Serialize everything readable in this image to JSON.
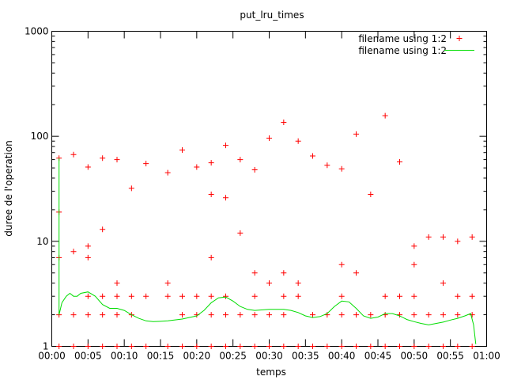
{
  "chart_data": {
    "type": "scatter",
    "title": "put_lru_times",
    "xlabel": "temps",
    "ylabel": "duree de l'operation",
    "yscale": "log",
    "ylim": [
      1,
      1000
    ],
    "y_ticks": [
      1,
      10,
      100,
      1000
    ],
    "y_tick_labels": [
      "1",
      "10",
      "100",
      "1000"
    ],
    "xlim": [
      "00:00",
      "01:00"
    ],
    "x_tick_labels": [
      "00:00",
      "00:05",
      "00:10",
      "00:15",
      "00:20",
      "00:25",
      "00:30",
      "00:35",
      "00:40",
      "00:45",
      "00:50",
      "00:55",
      "01:00"
    ],
    "legend_position": "top-right",
    "colors": {
      "points": "#ff0000",
      "line": "#00dd00"
    },
    "series": [
      {
        "name": "filename using 1:2",
        "style": "points",
        "points": [
          [
            "00:01",
            62
          ],
          [
            "00:01",
            19
          ],
          [
            "00:01",
            7
          ],
          [
            "00:01",
            2
          ],
          [
            "00:01",
            1
          ],
          [
            "00:03",
            67
          ],
          [
            "00:03",
            8
          ],
          [
            "00:03",
            2
          ],
          [
            "00:03",
            1
          ],
          [
            "00:05",
            51
          ],
          [
            "00:05",
            9
          ],
          [
            "00:05",
            7
          ],
          [
            "00:05",
            3
          ],
          [
            "00:05",
            2
          ],
          [
            "00:05",
            1
          ],
          [
            "00:07",
            62
          ],
          [
            "00:07",
            13
          ],
          [
            "00:07",
            3
          ],
          [
            "00:07",
            2
          ],
          [
            "00:07",
            1
          ],
          [
            "00:09",
            60
          ],
          [
            "00:09",
            4
          ],
          [
            "00:09",
            3
          ],
          [
            "00:09",
            2
          ],
          [
            "00:09",
            1
          ],
          [
            "00:11",
            32
          ],
          [
            "00:11",
            3
          ],
          [
            "00:11",
            2
          ],
          [
            "00:11",
            1
          ],
          [
            "00:13",
            55
          ],
          [
            "00:13",
            3
          ],
          [
            "00:13",
            1
          ],
          [
            "00:16",
            45
          ],
          [
            "00:16",
            4
          ],
          [
            "00:16",
            3
          ],
          [
            "00:16",
            1
          ],
          [
            "00:18",
            74
          ],
          [
            "00:18",
            3
          ],
          [
            "00:18",
            2
          ],
          [
            "00:18",
            1
          ],
          [
            "00:20",
            51
          ],
          [
            "00:20",
            3
          ],
          [
            "00:20",
            2
          ],
          [
            "00:20",
            1
          ],
          [
            "00:22",
            56
          ],
          [
            "00:22",
            28
          ],
          [
            "00:22",
            7
          ],
          [
            "00:22",
            3
          ],
          [
            "00:22",
            2
          ],
          [
            "00:22",
            1
          ],
          [
            "00:24",
            82
          ],
          [
            "00:24",
            26
          ],
          [
            "00:24",
            3
          ],
          [
            "00:24",
            2
          ],
          [
            "00:24",
            1
          ],
          [
            "00:26",
            60
          ],
          [
            "00:26",
            12
          ],
          [
            "00:26",
            2
          ],
          [
            "00:26",
            1
          ],
          [
            "00:28",
            48
          ],
          [
            "00:28",
            5
          ],
          [
            "00:28",
            3
          ],
          [
            "00:28",
            2
          ],
          [
            "00:28",
            1
          ],
          [
            "00:30",
            96
          ],
          [
            "00:30",
            4
          ],
          [
            "00:30",
            2
          ],
          [
            "00:30",
            1
          ],
          [
            "00:32",
            136
          ],
          [
            "00:32",
            5
          ],
          [
            "00:32",
            3
          ],
          [
            "00:32",
            2
          ],
          [
            "00:32",
            1
          ],
          [
            "00:34",
            90
          ],
          [
            "00:34",
            4
          ],
          [
            "00:34",
            3
          ],
          [
            "00:34",
            1
          ],
          [
            "00:36",
            65
          ],
          [
            "00:36",
            2
          ],
          [
            "00:36",
            1
          ],
          [
            "00:38",
            53
          ],
          [
            "00:38",
            2
          ],
          [
            "00:38",
            1
          ],
          [
            "00:40",
            49
          ],
          [
            "00:40",
            6
          ],
          [
            "00:40",
            3
          ],
          [
            "00:40",
            2
          ],
          [
            "00:40",
            1
          ],
          [
            "00:42",
            105
          ],
          [
            "00:42",
            5
          ],
          [
            "00:42",
            2
          ],
          [
            "00:42",
            1
          ],
          [
            "00:44",
            28
          ],
          [
            "00:44",
            2
          ],
          [
            "00:44",
            1
          ],
          [
            "00:46",
            157
          ],
          [
            "00:46",
            3
          ],
          [
            "00:46",
            2
          ],
          [
            "00:46",
            1
          ],
          [
            "00:48",
            57
          ],
          [
            "00:48",
            3
          ],
          [
            "00:48",
            2
          ],
          [
            "00:48",
            1
          ],
          [
            "00:50",
            9
          ],
          [
            "00:50",
            6
          ],
          [
            "00:50",
            3
          ],
          [
            "00:50",
            2
          ],
          [
            "00:50",
            1
          ],
          [
            "00:52",
            11
          ],
          [
            "00:52",
            2
          ],
          [
            "00:52",
            1
          ],
          [
            "00:54",
            11
          ],
          [
            "00:54",
            4
          ],
          [
            "00:54",
            2
          ],
          [
            "00:54",
            1
          ],
          [
            "00:56",
            10
          ],
          [
            "00:56",
            3
          ],
          [
            "00:56",
            2
          ],
          [
            "00:56",
            1
          ],
          [
            "00:58",
            11
          ],
          [
            "00:58",
            3
          ],
          [
            "00:58",
            2
          ],
          [
            "00:58",
            1
          ]
        ]
      },
      {
        "name": "filename using 1:2",
        "style": "line",
        "points": [
          [
            "00:01",
            62
          ],
          [
            "00:01",
            2
          ],
          [
            "00:01.4",
            2.6
          ],
          [
            "00:02",
            3
          ],
          [
            "00:02.5",
            3.2
          ],
          [
            "00:03",
            3
          ],
          [
            "00:03.5",
            3
          ],
          [
            "00:04",
            3.2
          ],
          [
            "00:05",
            3.3
          ],
          [
            "00:06",
            3
          ],
          [
            "00:07",
            2.5
          ],
          [
            "00:08",
            2.3
          ],
          [
            "00:09",
            2.3
          ],
          [
            "00:10",
            2.2
          ],
          [
            "00:11",
            2
          ],
          [
            "00:12",
            1.85
          ],
          [
            "00:13",
            1.75
          ],
          [
            "00:14",
            1.72
          ],
          [
            "00:15",
            1.73
          ],
          [
            "00:16",
            1.75
          ],
          [
            "00:18",
            1.82
          ],
          [
            "00:20",
            1.95
          ],
          [
            "00:21",
            2.2
          ],
          [
            "00:22",
            2.6
          ],
          [
            "00:23",
            2.9
          ],
          [
            "00:24",
            2.95
          ],
          [
            "00:25",
            2.7
          ],
          [
            "00:26",
            2.4
          ],
          [
            "00:27",
            2.25
          ],
          [
            "00:28",
            2.2
          ],
          [
            "00:30",
            2.25
          ],
          [
            "00:32",
            2.25
          ],
          [
            "00:33",
            2.2
          ],
          [
            "00:34",
            2.1
          ],
          [
            "00:35",
            1.95
          ],
          [
            "00:36",
            1.88
          ],
          [
            "00:37",
            1.92
          ],
          [
            "00:38",
            2.05
          ],
          [
            "00:39",
            2.4
          ],
          [
            "00:40",
            2.7
          ],
          [
            "00:41",
            2.65
          ],
          [
            "00:42",
            2.3
          ],
          [
            "00:43",
            1.95
          ],
          [
            "00:44",
            1.85
          ],
          [
            "00:45",
            1.9
          ],
          [
            "00:46",
            2.05
          ],
          [
            "00:47",
            2.05
          ],
          [
            "00:48",
            1.95
          ],
          [
            "00:49",
            1.8
          ],
          [
            "00:50",
            1.72
          ],
          [
            "00:51",
            1.65
          ],
          [
            "00:52",
            1.6
          ],
          [
            "00:53",
            1.65
          ],
          [
            "00:54",
            1.7
          ],
          [
            "00:55",
            1.78
          ],
          [
            "00:56",
            1.85
          ],
          [
            "00:57",
            1.95
          ],
          [
            "00:57.8",
            2.05
          ],
          [
            "00:58.2",
            1.6
          ],
          [
            "00:58.5",
            1.05
          ]
        ]
      }
    ]
  }
}
